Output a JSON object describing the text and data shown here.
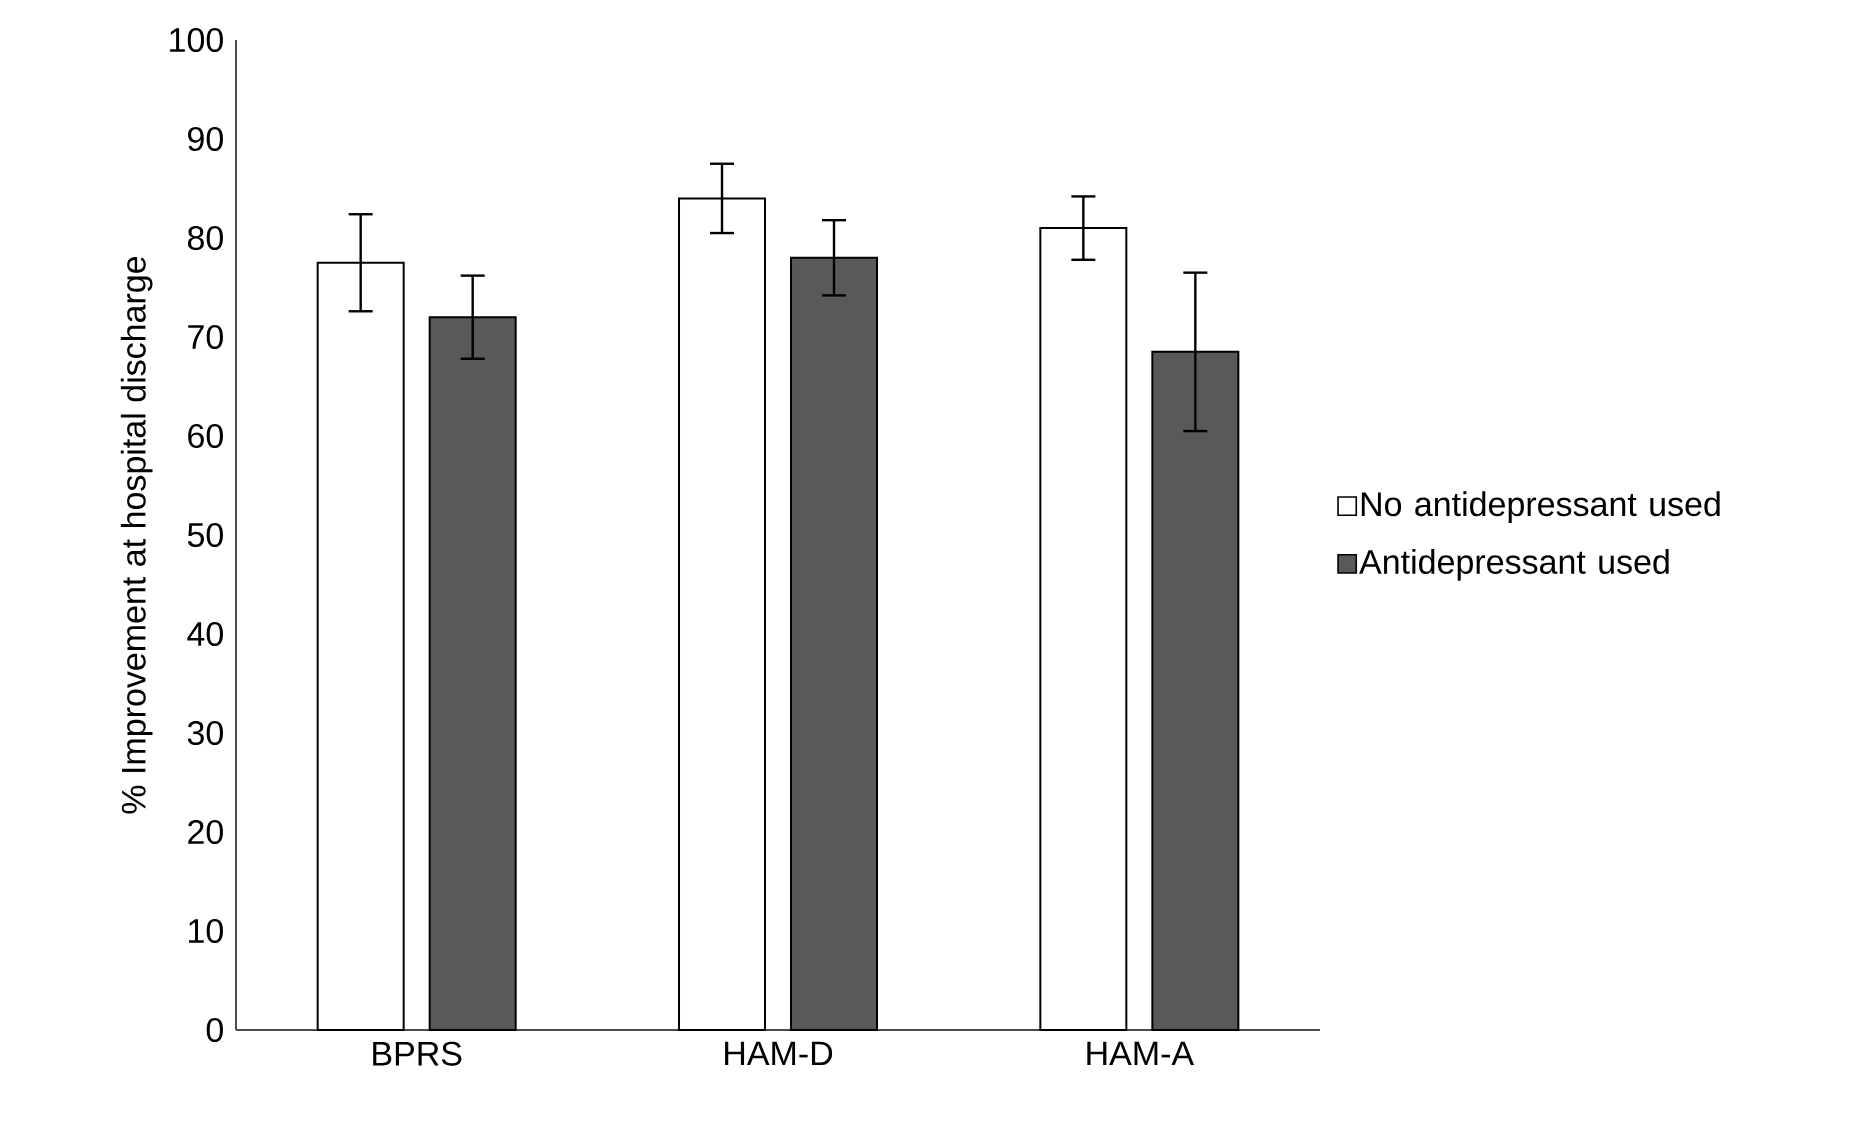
{
  "chart_data": {
    "type": "bar",
    "ylabel": "% Improvement at hospital discharge",
    "categories": [
      "BPRS",
      "HAM-D",
      "HAM-A"
    ],
    "series": [
      {
        "name": "No antidepressant used",
        "color": "#ffffff",
        "values": [
          77.5,
          84,
          81
        ],
        "errors": [
          4.9,
          3.5,
          3.2
        ]
      },
      {
        "name": "Antidepressant used",
        "color": "#595959",
        "values": [
          72,
          78,
          68.5
        ],
        "errors": [
          4.2,
          3.8,
          8
        ]
      }
    ],
    "ylim": [
      0,
      100
    ],
    "yticks": [
      0,
      10,
      20,
      30,
      40,
      50,
      60,
      70,
      80,
      90,
      100
    ],
    "grid": false,
    "legend": "right"
  }
}
